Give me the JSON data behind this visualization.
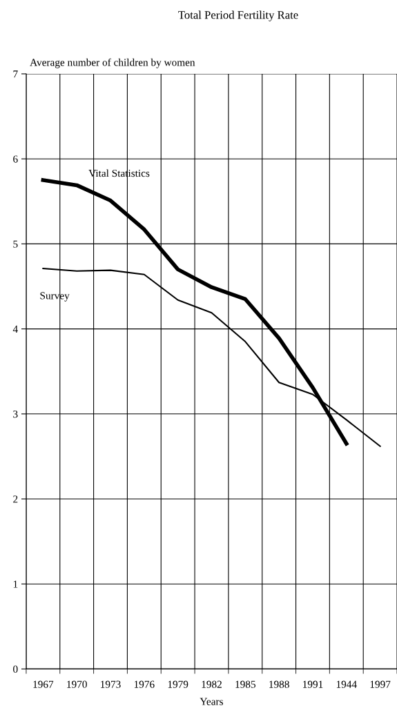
{
  "chart_data": {
    "type": "line",
    "title": "Total Period Fertility Rate",
    "ylabel": "Average number of children by women",
    "xlabel": "Years",
    "categories": [
      "1967",
      "1970",
      "1973",
      "1976",
      "1979",
      "1982",
      "1985",
      "1988",
      "1991",
      "1944",
      "1997"
    ],
    "series": [
      {
        "name": "Vital Statistics",
        "color": "#000000",
        "values": [
          5.75,
          5.69,
          5.51,
          5.17,
          4.7,
          4.49,
          4.35,
          3.89,
          3.31,
          2.65,
          null
        ]
      },
      {
        "name": "Survey",
        "color": "#000000",
        "values": [
          4.71,
          4.68,
          4.69,
          4.64,
          4.34,
          4.19,
          3.85,
          3.37,
          3.23,
          2.93,
          2.62
        ]
      }
    ],
    "ylim": [
      0,
      7
    ],
    "yticks": [
      0,
      1,
      2,
      3,
      4,
      5,
      6,
      7
    ],
    "grid": true,
    "legend": false,
    "marker": "none",
    "line_style": "solid"
  }
}
